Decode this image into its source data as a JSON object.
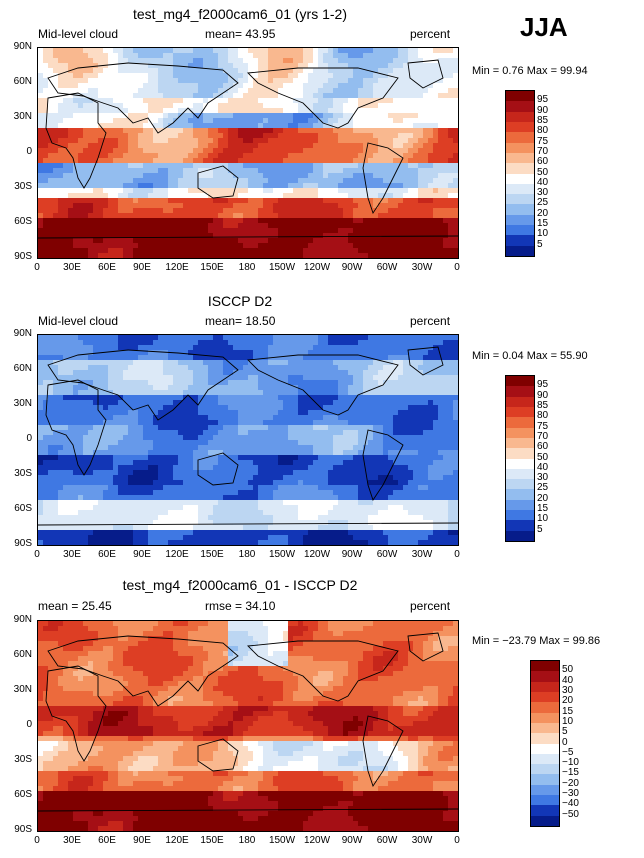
{
  "season": "JJA",
  "colors": {
    "warm": [
      "#7f0000",
      "#a50f15",
      "#c6261b",
      "#dd3e24",
      "#ec6a3c",
      "#f4925f",
      "#f9b88f",
      "#fcdcc4",
      "#fff0e4"
    ],
    "cool": [
      "#dce9f7",
      "#bcd6f2",
      "#93bdef",
      "#6699ea",
      "#3f78e3",
      "#2156d6",
      "#1236b6",
      "#061c8a"
    ]
  },
  "panels": [
    {
      "title": "test_mg4_f2000cam6_01 (yrs 1-2)",
      "left_label": "Mid-level cloud",
      "mean_label": "mean=  43.95",
      "units": "percent",
      "minmax": "Min =    0.76  Max =   99.94",
      "levels": [
        "95",
        "90",
        "85",
        "80",
        "75",
        "70",
        "60",
        "50",
        "40",
        "30",
        "25",
        "20",
        "15",
        "10",
        "5"
      ]
    },
    {
      "title": "ISCCP D2",
      "left_label": "Mid-level cloud",
      "mean_label": "mean=  18.50",
      "units": "percent",
      "minmax": "Min =    0.04  Max =   55.90",
      "levels": [
        "95",
        "90",
        "85",
        "80",
        "75",
        "70",
        "60",
        "50",
        "40",
        "30",
        "25",
        "20",
        "15",
        "10",
        "5"
      ]
    },
    {
      "title": "test_mg4_f2000cam6_01 - ISCCP D2",
      "left_label": "mean =  25.45",
      "mean_label": "rmse =  34.10",
      "units": "percent",
      "minmax": "Min =  −23.79  Max =   99.86",
      "levels": [
        "50",
        "40",
        "30",
        "20",
        "15",
        "10",
        "5",
        "0",
        "−5",
        "−10",
        "−15",
        "−20",
        "−30",
        "−40",
        "−50"
      ]
    }
  ],
  "chart_data": {
    "type": "heatmap",
    "variable": "Mid-level cloud",
    "units": "percent",
    "season": "JJA",
    "x_tick_labels": [
      "0",
      "30E",
      "60E",
      "90E",
      "120E",
      "150E",
      "180",
      "150W",
      "120W",
      "90W",
      "60W",
      "30W",
      "0"
    ],
    "y_tick_labels": [
      "90N",
      "60N",
      "30N",
      "0",
      "30S",
      "60S",
      "90S"
    ],
    "x_range": [
      0,
      360
    ],
    "y_range": [
      -90,
      90
    ],
    "maps": [
      {
        "name": "test_mg4_f2000cam6_01 (yrs 1-2)",
        "mean": 43.95,
        "min": 0.76,
        "max": 99.94,
        "contour_levels": [
          5,
          10,
          15,
          20,
          25,
          30,
          40,
          50,
          60,
          70,
          75,
          80,
          85,
          90,
          95
        ]
      },
      {
        "name": "ISCCP D2",
        "mean": 18.5,
        "min": 0.04,
        "max": 55.9,
        "contour_levels": [
          5,
          10,
          15,
          20,
          25,
          30,
          40,
          50,
          60,
          70,
          75,
          80,
          85,
          90,
          95
        ]
      },
      {
        "name": "test_mg4_f2000cam6_01 - ISCCP D2",
        "mean": 25.45,
        "rmse": 34.1,
        "min": -23.79,
        "max": 99.86,
        "contour_levels": [
          -50,
          -40,
          -30,
          -20,
          -15,
          -10,
          -5,
          0,
          5,
          10,
          15,
          20,
          30,
          40,
          50
        ]
      }
    ]
  }
}
